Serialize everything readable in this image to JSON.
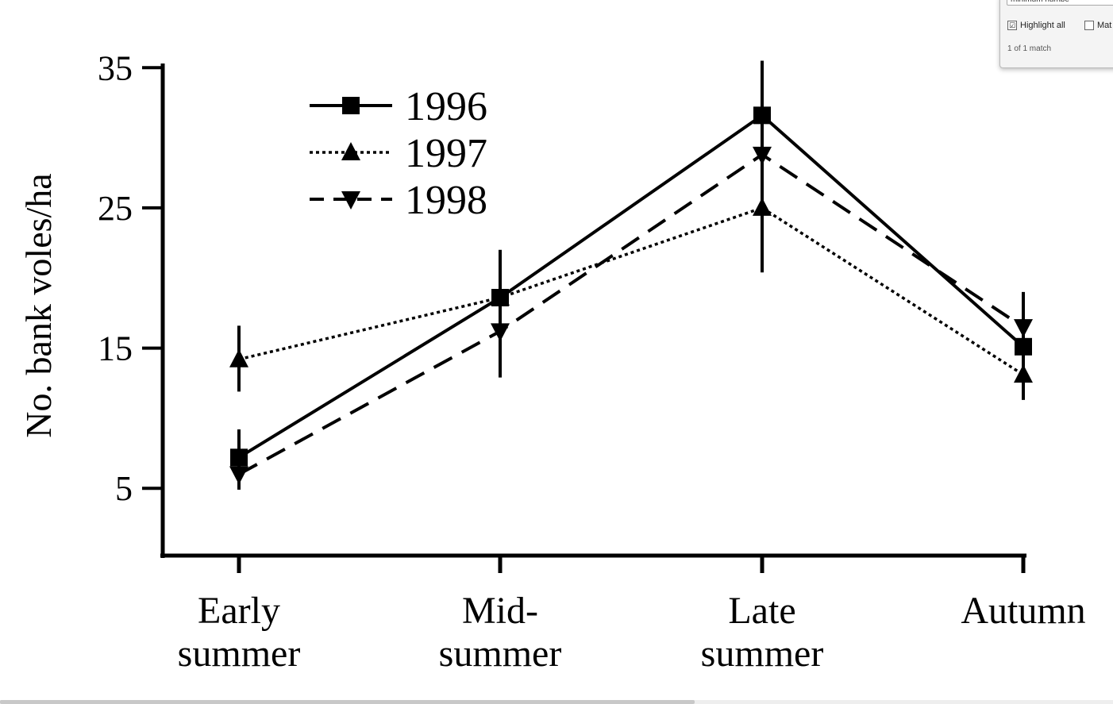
{
  "chart_data": {
    "type": "line",
    "ylabel": "No. bank voles/ha",
    "xlabel": "",
    "categories": [
      [
        "Early",
        "summer"
      ],
      [
        "Mid-",
        "summer"
      ],
      [
        "Late",
        "summer"
      ],
      [
        "Autumn"
      ]
    ],
    "yticks": [
      "35",
      "25",
      "15",
      "5"
    ],
    "ytick_values": [
      35,
      25,
      15,
      5
    ],
    "ylim": [
      0.2,
      35.3
    ],
    "legend_position": "top-left",
    "series": [
      {
        "name": "1996",
        "marker": "square",
        "dash": "solid",
        "values": [
          7.2,
          18.6,
          31.6,
          15.1
        ],
        "err_low": [
          5.6,
          15.0,
          23.0,
          11.5
        ],
        "err_high": [
          9.2,
          22.0,
          35.5,
          19.0
        ]
      },
      {
        "name": "1997",
        "marker": "triangle-up",
        "dash": "dotted",
        "values": [
          14.2,
          18.6,
          25.0,
          13.1
        ],
        "err_low": [
          11.9,
          15.0,
          20.4,
          11.3
        ],
        "err_high": [
          16.6,
          22.0,
          29.0,
          15.0
        ]
      },
      {
        "name": "1998",
        "marker": "triangle-down",
        "dash": "dashed",
        "values": [
          6.0,
          16.2,
          28.8,
          16.5
        ],
        "err_low": [
          4.9,
          12.9,
          23.0,
          14.5
        ],
        "err_high": [
          8.0,
          19.5,
          33.0,
          18.5
        ]
      }
    ],
    "colors": {
      "ink": "#000000"
    }
  },
  "find_bar": {
    "query": "minimum numbe",
    "highlight_all_label": "Highlight all",
    "highlight_all_checked": "☑",
    "match_label": "Mat",
    "status": "1 of 1 match"
  }
}
